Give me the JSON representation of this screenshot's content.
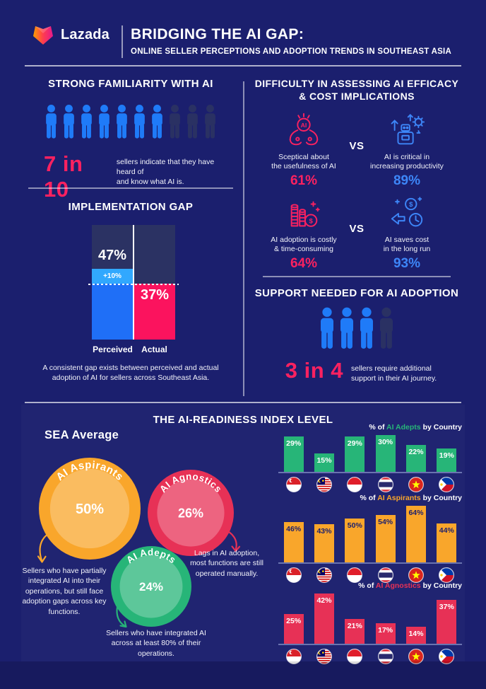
{
  "colors": {
    "background": "#1B1F6E",
    "pink": "#FB2160",
    "blue": "#1F7BF8",
    "light_blue": "#31A8FE",
    "dim_figure": "#2A3163",
    "panel_navy": "#2B3263",
    "green": "#27B578",
    "orange": "#F9A62B",
    "red": "#E73156",
    "blue_text": "#3D86F8"
  },
  "header": {
    "brand": "Lazada",
    "title": "BRIDGING THE AI GAP:",
    "subtitle": "ONLINE SELLER PERCEPTIONS AND ADOPTION TRENDS IN SOUTHEAST ASIA"
  },
  "familiarity": {
    "title": "STRONG FAMILIARITY WITH AI",
    "stat": "7 in 10",
    "desc_line1": "sellers indicate that they have heard of",
    "desc_line2": "and know what AI is.",
    "total": 10,
    "highlighted": 7
  },
  "difficulty": {
    "title_line1": "DIFFICULTY IN ASSESSING AI EFFICACY",
    "title_line2": "& COST IMPLICATIONS",
    "vs": "VS",
    "rows": [
      {
        "left": {
          "icon": "ai-hands",
          "label_line1": "Sceptical about",
          "label_line2": "the usefulness of AI",
          "value": "61%"
        },
        "right": {
          "icon": "productivity",
          "label_line1": "AI is critical in",
          "label_line2": "increasing productivity",
          "value": "89%"
        }
      },
      {
        "left": {
          "icon": "coins",
          "label_line1": "AI adoption is costly",
          "label_line2": "& time-consuming",
          "value": "64%"
        },
        "right": {
          "icon": "savings",
          "label_line1": "AI saves cost",
          "label_line2": "in the long run",
          "value": "93%"
        }
      }
    ]
  },
  "implementation": {
    "title": "IMPLEMENTATION GAP",
    "perceived_value": "47%",
    "gap_value": "+10%",
    "actual_value": "37%",
    "perceived_label": "Perceived",
    "actual_label": "Actual",
    "caption_line1": "A consistent gap exists between perceived and actual",
    "caption_line2": "adoption of AI for sellers across Southeast Asia."
  },
  "support": {
    "title": "SUPPORT NEEDED FOR AI ADOPTION",
    "stat": "3 in 4",
    "desc_line1": "sellers require additional",
    "desc_line2": "support in their AI journey.",
    "total": 4,
    "highlighted": 3
  },
  "readiness": {
    "title": "THE AI-READINESS INDEX LEVEL",
    "sea_label": "SEA Average",
    "bubbles": [
      {
        "name": "AI Aspirants",
        "value": "50%",
        "color": "#F9A62B",
        "note": "Sellers who have partially integrated AI into their operations, but still face adoption gaps across key functions."
      },
      {
        "name": "AI Agnostics",
        "value": "26%",
        "color": "#E73156",
        "note": "Lags in AI adoption, most functions are still operated manually."
      },
      {
        "name": "AI Adepts",
        "value": "24%",
        "color": "#27B578",
        "note": "Sellers who have integrated AI across at least 80% of their operations."
      }
    ]
  },
  "chart_data": [
    {
      "id": "implementation_gap",
      "type": "bar",
      "title": "IMPLEMENTATION GAP",
      "categories": [
        "Perceived",
        "Actual"
      ],
      "values": [
        47,
        37
      ],
      "annotation": "+10%",
      "ylim": [
        0,
        75
      ],
      "grid": false
    },
    {
      "id": "sea_average",
      "type": "bubble",
      "title": "SEA Average",
      "categories": [
        "AI Aspirants",
        "AI Agnostics",
        "AI Adepts"
      ],
      "values": [
        50,
        26,
        24
      ]
    },
    {
      "id": "adepts_by_country",
      "type": "bar",
      "title_prefix": "% of ",
      "title_name": "AI Adepts",
      "title_suffix": " by Country",
      "color": "#27B578",
      "label_color": "#FFFFFF",
      "categories": [
        "Singapore",
        "Malaysia",
        "Indonesia",
        "Thailand",
        "Vietnam",
        "Philippines"
      ],
      "values": [
        29,
        15,
        29,
        30,
        22,
        19
      ]
    },
    {
      "id": "aspirants_by_country",
      "type": "bar",
      "title_prefix": "% of ",
      "title_name": "AI Aspirants",
      "title_suffix": " by Country",
      "color": "#F9A62B",
      "label_color": "#1B1F6E",
      "categories": [
        "Singapore",
        "Malaysia",
        "Indonesia",
        "Thailand",
        "Vietnam",
        "Philippines"
      ],
      "values": [
        46,
        43,
        50,
        54,
        64,
        44
      ]
    },
    {
      "id": "agnostics_by_country",
      "type": "bar",
      "title_prefix": "% of ",
      "title_name": "AI Agnostics",
      "title_suffix": " by Country",
      "color": "#E73156",
      "label_color": "#FFFFFF",
      "categories": [
        "Singapore",
        "Malaysia",
        "Indonesia",
        "Thailand",
        "Vietnam",
        "Philippines"
      ],
      "values": [
        25,
        42,
        21,
        17,
        14,
        37
      ]
    }
  ]
}
